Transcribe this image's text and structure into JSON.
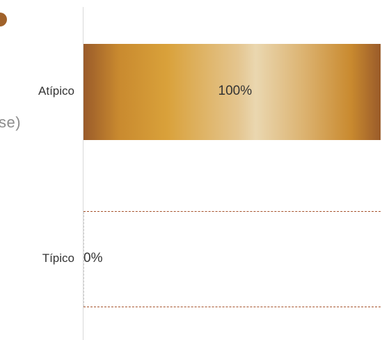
{
  "partial_text": "se)",
  "chart_data": {
    "type": "bar",
    "orientation": "horizontal",
    "categories": [
      "Atípico",
      "Típico"
    ],
    "values": [
      100,
      0
    ],
    "value_labels": [
      "100%",
      "0%"
    ],
    "xlim": [
      0,
      100
    ],
    "colors": {
      "bar_gradient": [
        "#9a5b2a",
        "#d9a13a",
        "#ead7b0",
        "#c98a2f",
        "#9a5b2a"
      ],
      "zero_dash": "#a5512a",
      "axis": "#d9d9d9",
      "marker": "#a0622a"
    }
  }
}
